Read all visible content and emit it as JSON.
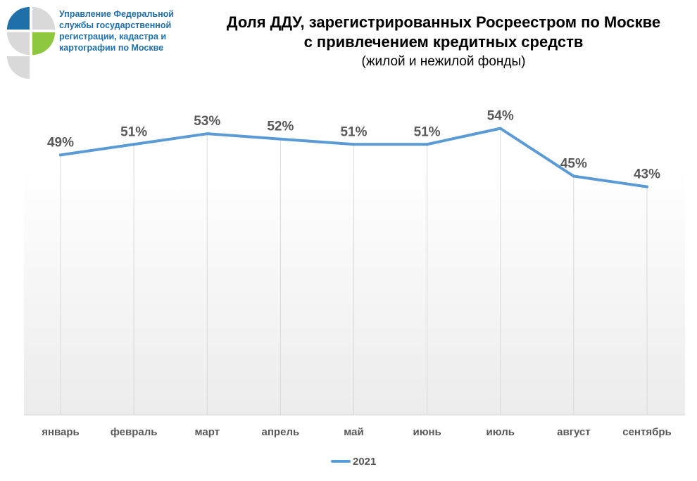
{
  "organization": {
    "name_lines": [
      "Управление Федеральной",
      "службы государственной",
      "регистрации, кадастра и",
      "картографии по Москве"
    ],
    "logo_icon": "rosreestr-logo-icon",
    "logo_colors": [
      "#1f6fa8",
      "#8dc63f",
      "#d9d9d9"
    ]
  },
  "title": {
    "line1": "Доля ДДУ, зарегистрированных Росреестром по Москве",
    "line2": "с привлечением кредитных средств",
    "subtitle": "(жилой и нежилой фонды)"
  },
  "chart_data": {
    "type": "line",
    "categories": [
      "январь",
      "февраль",
      "март",
      "апрель",
      "май",
      "июнь",
      "июль",
      "август",
      "сентябрь"
    ],
    "series": [
      {
        "name": "2021",
        "values": [
          49,
          51,
          53,
          52,
          51,
          51,
          54,
          45,
          43
        ],
        "labels": [
          "49%",
          "51%",
          "53%",
          "52%",
          "51%",
          "51%",
          "54%",
          "45%",
          "43%"
        ],
        "color": "#5b9bd5"
      }
    ],
    "unit": "%",
    "ylim": [
      0,
      57
    ],
    "grid": "vertical",
    "legend": "bottom"
  }
}
